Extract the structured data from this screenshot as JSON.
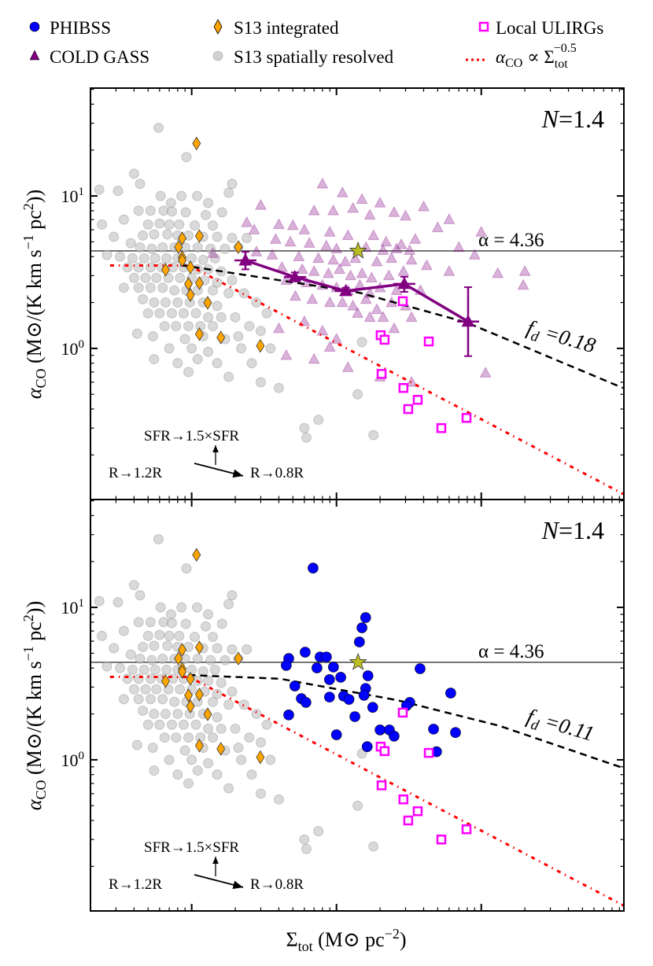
{
  "legend": {
    "phibss": "PHIBSS",
    "cold_gass": "COLD GASS",
    "s13_integrated": "S13 integrated",
    "s13_resolved": "S13 spatially resolved",
    "ulirgs": "Local ULIRGs",
    "relation": {
      "alpha": "α",
      "alpha_sub": "CO",
      "prop": " ∝ ",
      "sigma": "Σ",
      "sigma_sub": "tot",
      "sigma_sup": "−0.5"
    }
  },
  "panels": [
    {
      "n_var": "N",
      "n_eq": "=1.4",
      "hline_label": "α = 4.36",
      "fd_f": "f",
      "fd_sub": "d",
      "fd_eq": " =0.18",
      "arrow_sfr": "SFR→1.5×SFR",
      "arrow_r_up": "R→1.2R",
      "arrow_r_down": "R→0.8R"
    },
    {
      "n_var": "N",
      "n_eq": "=1.4",
      "hline_label": "α = 4.36",
      "fd_f": "f",
      "fd_sub": "d",
      "fd_eq": " =0.11",
      "arrow_sfr": "SFR→1.5×SFR",
      "arrow_r_up": "R→1.2R",
      "arrow_r_down": "R→0.8R"
    }
  ],
  "axes": {
    "xlabel": {
      "sigma": "Σ",
      "sub": "tot",
      "rest": " (M⊙ pc",
      "sup": "−2",
      "end": ")"
    },
    "ylabel": {
      "alpha": "α",
      "sub": "CO",
      "rest": " (M⊙/(K km s",
      "sup1": "−1",
      "rest2": " pc",
      "sup2": "2",
      "end": "))"
    },
    "yticks": [
      {
        "value": 10,
        "base": "10",
        "exp": "1"
      },
      {
        "value": 1,
        "base": "10",
        "exp": "0"
      }
    ]
  },
  "colors": {
    "phibss": "#0000ff",
    "cold_gass": "#800080",
    "s13_integrated": "#ffa500",
    "s13_resolved": "#c0c0c0",
    "ulirgs": "#ff00ff",
    "relation": "#ff0000",
    "star": "#bcbd22",
    "fd": "#000000",
    "hline": "#555555"
  },
  "chart_data": {
    "type": "scatter",
    "xscale": "log",
    "yscale": "log",
    "xlim": [
      2.0,
      9660
    ],
    "ylim": [
      0.102,
      51
    ],
    "x_major_ticks": [
      10,
      100,
      1000
    ],
    "y_major_ticks": [
      1,
      10
    ],
    "hline": 4.36,
    "panel_series": [
      [
        "s13_resolved",
        "cold_gass",
        "relation",
        "fd_curve_0",
        "cold_gass_binned",
        "s13_integrated",
        "ulirgs",
        "star"
      ],
      [
        "s13_resolved",
        "relation",
        "fd_curve_1",
        "phibss",
        "s13_integrated",
        "ulirgs",
        "star"
      ]
    ],
    "relation": {
      "alpha0": 3.5,
      "sigma_break": 9.6,
      "slope": -0.5,
      "sigma_start": 2.73
    },
    "fd_curve_0": [
      [
        8.4,
        3.52
      ],
      [
        70.6,
        2.58
      ],
      [
        144,
        2.32
      ],
      [
        791,
        1.48
      ],
      [
        9530,
        0.55
      ]
    ],
    "fd_curve_1": [
      [
        9.5,
        3.6
      ],
      [
        41,
        3.4
      ],
      [
        263,
        2.46
      ],
      [
        1337,
        1.67
      ],
      [
        9660,
        0.88
      ]
    ],
    "star": [
      [
        141,
        4.36
      ]
    ],
    "cold_gass_binned": [
      {
        "x": 23.5,
        "y": 3.78,
        "ylo": 3.3,
        "yhi": 4.3
      },
      {
        "x": 51.6,
        "y": 2.94,
        "ylo": 2.75,
        "yhi": 3.15
      },
      {
        "x": 116,
        "y": 2.38,
        "ylo": 2.25,
        "yhi": 2.5
      },
      {
        "x": 294,
        "y": 2.65,
        "ylo": 2.35,
        "yhi": 2.95
      },
      {
        "x": 811,
        "y": 1.5,
        "ylo": 0.89,
        "yhi": 2.52
      }
    ],
    "s13_integrated": [
      [
        10.8,
        22.1
      ],
      [
        8.6,
        5.27
      ],
      [
        11.3,
        5.46
      ],
      [
        8.1,
        4.62
      ],
      [
        8.6,
        3.96
      ],
      [
        8.6,
        3.78
      ],
      [
        9.8,
        3.4
      ],
      [
        6.6,
        3.28
      ],
      [
        21.0,
        4.62
      ],
      [
        9.5,
        2.65
      ],
      [
        11.3,
        2.68
      ],
      [
        9.8,
        2.24
      ],
      [
        12.9,
        1.99
      ],
      [
        11.3,
        1.24
      ],
      [
        15.9,
        1.18
      ],
      [
        29.8,
        1.04
      ]
    ],
    "ulirgs": [
      [
        287,
        2.04
      ],
      [
        202,
        1.22
      ],
      [
        215,
        1.14
      ],
      [
        434,
        1.11
      ],
      [
        205,
        0.68
      ],
      [
        290,
        0.55
      ],
      [
        364,
        0.46
      ],
      [
        313,
        0.4
      ],
      [
        530,
        0.3
      ],
      [
        791,
        0.35
      ]
    ],
    "phibss": [
      [
        68.9,
        18.1
      ],
      [
        159,
        8.57
      ],
      [
        150,
        7.35
      ],
      [
        144,
        5.93
      ],
      [
        60.8,
        5.08
      ],
      [
        46.8,
        4.62
      ],
      [
        45.0,
        4.16
      ],
      [
        77.1,
        4.73
      ],
      [
        85.2,
        4.73
      ],
      [
        73.3,
        4.01
      ],
      [
        95.3,
        4.06
      ],
      [
        165,
        3.56
      ],
      [
        107,
        3.48
      ],
      [
        89.5,
        3.36
      ],
      [
        378,
        3.96
      ],
      [
        51.6,
        3.05
      ],
      [
        159,
        2.94
      ],
      [
        155,
        2.65
      ],
      [
        89.5,
        2.58
      ],
      [
        112,
        2.62
      ],
      [
        122,
        2.49
      ],
      [
        57.2,
        2.52
      ],
      [
        61.5,
        2.38
      ],
      [
        615,
        2.74
      ],
      [
        321,
        2.38
      ],
      [
        305,
        2.27
      ],
      [
        178,
        2.21
      ],
      [
        46.8,
        1.97
      ],
      [
        134,
        1.92
      ],
      [
        200,
        1.57
      ],
      [
        232,
        1.57
      ],
      [
        250,
        1.43
      ],
      [
        468,
        1.59
      ],
      [
        664,
        1.51
      ],
      [
        100,
        1.46
      ],
      [
        163,
        1.22
      ],
      [
        491,
        1.13
      ]
    ],
    "cold_gass": [
      [
        80,
        12
      ],
      [
        110,
        10.5
      ],
      [
        150,
        9.5
      ],
      [
        200,
        9
      ],
      [
        70,
        8
      ],
      [
        95,
        8
      ],
      [
        130,
        8.3
      ],
      [
        170,
        7.5
      ],
      [
        250,
        7.8
      ],
      [
        300,
        7.4
      ],
      [
        400,
        8.5
      ],
      [
        500,
        6.2
      ],
      [
        600,
        7
      ],
      [
        1000,
        5.8
      ],
      [
        30,
        8.7
      ],
      [
        24,
        6.7
      ],
      [
        27,
        6
      ],
      [
        40,
        6.5
      ],
      [
        50,
        6.4
      ],
      [
        60,
        6
      ],
      [
        90,
        5.8
      ],
      [
        120,
        5.5
      ],
      [
        180,
        5.5
      ],
      [
        220,
        5
      ],
      [
        280,
        4.8
      ],
      [
        350,
        5.2
      ],
      [
        700,
        4.6
      ],
      [
        38,
        5.2
      ],
      [
        48,
        5
      ],
      [
        65,
        4.9
      ],
      [
        85,
        4.7
      ],
      [
        100,
        4.5
      ],
      [
        140,
        4.4
      ],
      [
        160,
        4.6
      ],
      [
        210,
        4.4
      ],
      [
        260,
        4.5
      ],
      [
        320,
        4.4
      ],
      [
        900,
        4.1
      ],
      [
        2000,
        3.2
      ],
      [
        28,
        4.3
      ],
      [
        36,
        4.1
      ],
      [
        55,
        4
      ],
      [
        75,
        3.9
      ],
      [
        95,
        3.8
      ],
      [
        115,
        3.7
      ],
      [
        135,
        3.9
      ],
      [
        190,
        3.7
      ],
      [
        240,
        3.9
      ],
      [
        330,
        3.8
      ],
      [
        420,
        3.5
      ],
      [
        600,
        3.2
      ],
      [
        1300,
        3.1
      ],
      [
        1950,
        2.6
      ],
      [
        42,
        3.4
      ],
      [
        58,
        3.3
      ],
      [
        70,
        3.2
      ],
      [
        88,
        3.1
      ],
      [
        105,
        3.3
      ],
      [
        125,
        3
      ],
      [
        150,
        3.1
      ],
      [
        175,
        2.9
      ],
      [
        230,
        3
      ],
      [
        290,
        3.2
      ],
      [
        45,
        2.8
      ],
      [
        62,
        2.7
      ],
      [
        80,
        2.6
      ],
      [
        100,
        2.5
      ],
      [
        120,
        2.4
      ],
      [
        145,
        2.6
      ],
      [
        170,
        2.3
      ],
      [
        200,
        2.5
      ],
      [
        260,
        2.4
      ],
      [
        380,
        2.4
      ],
      [
        52,
        2.2
      ],
      [
        68,
        2.1
      ],
      [
        90,
        2
      ],
      [
        110,
        2
      ],
      [
        130,
        1.9
      ],
      [
        160,
        2.1
      ],
      [
        190,
        1.8
      ],
      [
        240,
        2
      ],
      [
        300,
        1.9
      ],
      [
        140,
        1.7
      ],
      [
        170,
        1.6
      ],
      [
        210,
        1.6
      ],
      [
        330,
        1.6
      ],
      [
        60,
        1.5
      ],
      [
        80,
        1.3
      ],
      [
        100,
        1.15
      ],
      [
        250,
        1.35
      ],
      [
        45,
        0.9
      ],
      [
        70,
        0.85
      ],
      [
        120,
        0.75
      ],
      [
        200,
        0.65
      ],
      [
        330,
        0.6
      ],
      [
        1070,
        0.69
      ],
      [
        90,
        1.02
      ],
      [
        40,
        1.35
      ],
      [
        14,
        4.2
      ]
    ],
    "s13_resolved": [
      [
        5.9,
        28
      ],
      [
        9.2,
        18
      ],
      [
        4.0,
        14
      ],
      [
        4.4,
        12
      ],
      [
        2.3,
        11
      ],
      [
        19,
        12
      ],
      [
        18,
        10.5
      ],
      [
        3.1,
        10.8
      ],
      [
        6.1,
        10
      ],
      [
        8.5,
        10
      ],
      [
        10.9,
        10
      ],
      [
        13,
        9
      ],
      [
        7.2,
        9
      ],
      [
        4.3,
        8
      ],
      [
        5.2,
        8
      ],
      [
        6.4,
        8
      ],
      [
        7.3,
        7.9
      ],
      [
        9.1,
        7.8
      ],
      [
        12.5,
        7.5
      ],
      [
        16.2,
        7.8
      ],
      [
        3.4,
        7
      ],
      [
        5.0,
        6.5
      ],
      [
        6.0,
        6.6
      ],
      [
        7.0,
        6.5
      ],
      [
        8.2,
        6.5
      ],
      [
        10.5,
        6.4
      ],
      [
        14,
        6.4
      ],
      [
        2.4,
        6.5
      ],
      [
        2.9,
        5.4
      ],
      [
        4.6,
        5.5
      ],
      [
        5.5,
        5.6
      ],
      [
        6.8,
        5.6
      ],
      [
        8.0,
        5.5
      ],
      [
        9.5,
        5.5
      ],
      [
        12,
        5.4
      ],
      [
        15,
        5.4
      ],
      [
        19,
        5.3
      ],
      [
        24,
        5.3
      ],
      [
        3.8,
        4.9
      ],
      [
        4.4,
        4.6
      ],
      [
        5.3,
        4.5
      ],
      [
        6.3,
        4.6
      ],
      [
        7.6,
        4.6
      ],
      [
        9.0,
        4.6
      ],
      [
        11,
        4.6
      ],
      [
        13.5,
        4.5
      ],
      [
        17,
        4.5
      ],
      [
        21,
        4.6
      ],
      [
        2.6,
        4.1
      ],
      [
        3.2,
        4.0
      ],
      [
        3.9,
        3.9
      ],
      [
        4.7,
        3.9
      ],
      [
        5.6,
        3.9
      ],
      [
        6.7,
        3.9
      ],
      [
        8.0,
        3.9
      ],
      [
        10,
        3.9
      ],
      [
        12,
        3.8
      ],
      [
        14.5,
        3.9
      ],
      [
        3.6,
        3.4
      ],
      [
        4.3,
        3.4
      ],
      [
        5.2,
        3.4
      ],
      [
        6.2,
        3.4
      ],
      [
        7.4,
        3.4
      ],
      [
        8.8,
        3.4
      ],
      [
        11,
        3.3
      ],
      [
        13,
        3.3
      ],
      [
        16,
        3.2
      ],
      [
        4.0,
        2.9
      ],
      [
        4.8,
        2.9
      ],
      [
        5.7,
        2.9
      ],
      [
        6.9,
        2.9
      ],
      [
        8.3,
        2.9
      ],
      [
        10,
        2.9
      ],
      [
        12.3,
        2.8
      ],
      [
        15,
        2.7
      ],
      [
        19,
        2.8
      ],
      [
        3.4,
        2.5
      ],
      [
        4.3,
        2.5
      ],
      [
        5.2,
        2.5
      ],
      [
        6.3,
        2.5
      ],
      [
        7.6,
        2.4
      ],
      [
        9.2,
        2.4
      ],
      [
        11,
        2.4
      ],
      [
        14,
        2.4
      ],
      [
        18,
        2.3
      ],
      [
        23,
        2.3
      ],
      [
        4.6,
        2.1
      ],
      [
        5.5,
        2.0
      ],
      [
        6.6,
        2.0
      ],
      [
        8.0,
        2.0
      ],
      [
        9.7,
        2.0
      ],
      [
        12,
        2.0
      ],
      [
        15,
        1.9
      ],
      [
        28,
        2.0
      ],
      [
        33,
        1.7
      ],
      [
        5.0,
        1.7
      ],
      [
        6.0,
        1.7
      ],
      [
        7.3,
        1.7
      ],
      [
        8.8,
        1.7
      ],
      [
        10.7,
        1.7
      ],
      [
        13,
        1.6
      ],
      [
        16,
        1.6
      ],
      [
        20,
        1.6
      ],
      [
        6.5,
        1.4
      ],
      [
        7.8,
        1.4
      ],
      [
        9.5,
        1.4
      ],
      [
        11.5,
        1.4
      ],
      [
        14,
        1.4
      ],
      [
        25,
        1.4
      ],
      [
        30,
        1.3
      ],
      [
        4.2,
        1.25
      ],
      [
        5.4,
        1.2
      ],
      [
        9,
        1.15
      ],
      [
        12,
        1.2
      ],
      [
        17,
        1.15
      ],
      [
        21,
        1.2
      ],
      [
        7,
        1.0
      ],
      [
        10,
        1.0
      ],
      [
        13,
        0.95
      ],
      [
        22,
        1.0
      ],
      [
        35,
        1.0
      ],
      [
        5.5,
        0.85
      ],
      [
        8,
        0.8
      ],
      [
        11,
        0.85
      ],
      [
        15,
        0.8
      ],
      [
        26,
        0.8
      ],
      [
        9.5,
        0.7
      ],
      [
        18,
        0.65
      ],
      [
        40,
        0.55
      ],
      [
        140,
        0.5
      ],
      [
        75,
        0.34
      ],
      [
        60,
        0.3
      ],
      [
        62,
        0.26
      ],
      [
        180,
        0.27
      ],
      [
        150,
        1.1
      ],
      [
        30,
        0.6
      ]
    ]
  }
}
